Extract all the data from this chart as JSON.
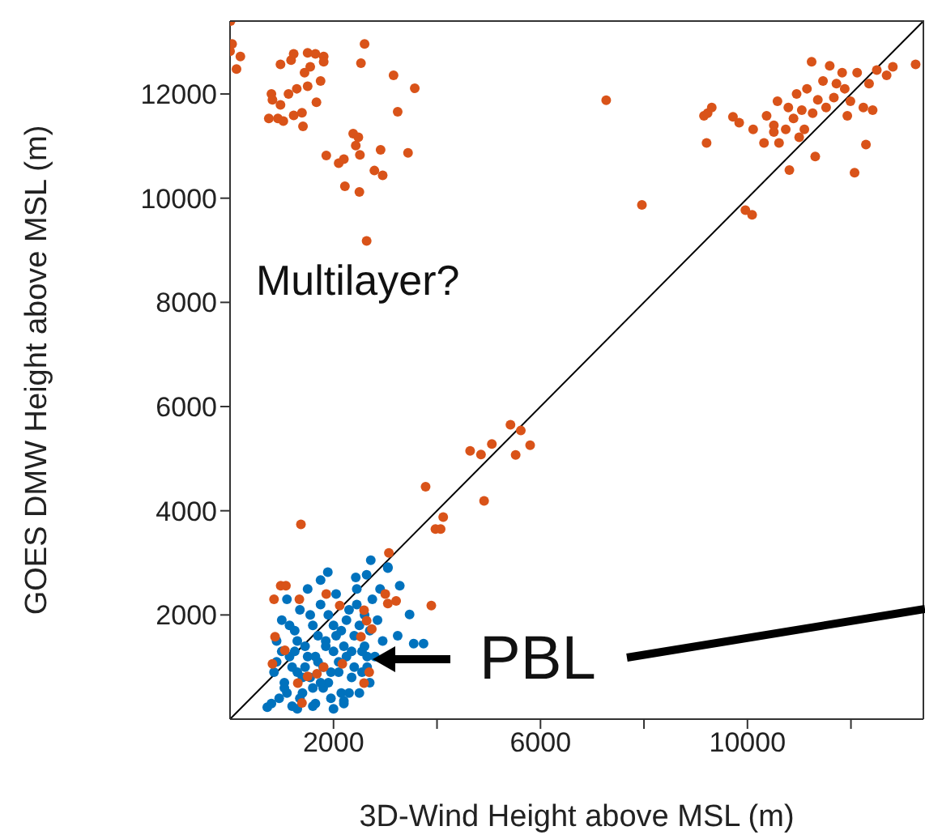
{
  "chart_data": {
    "type": "scatter",
    "xlabel": "3D-Wind Height above MSL (m)",
    "ylabel": "GOES DMW Height above MSL (m)",
    "xlim": [
      0,
      13400
    ],
    "ylim": [
      0,
      13400
    ],
    "xticks": [
      2000,
      {
        "value": 4000,
        "label": null
      },
      6000,
      {
        "value": 8000,
        "label": null
      },
      10000,
      {
        "value": 12000,
        "label": null
      }
    ],
    "yticks": [
      2000,
      4000,
      6000,
      8000,
      10000,
      12000
    ],
    "annotations": [
      "Multilayer?",
      "PBL"
    ],
    "series": [
      {
        "marker": "circle",
        "color": "#0072bd",
        "x": [
          720,
          800,
          850,
          900,
          950,
          1000,
          1050,
          1100,
          1150,
          1200,
          1250,
          1300,
          1350,
          1400,
          1450,
          1500,
          1550,
          1600,
          1650,
          1700,
          1750,
          1800,
          1850,
          1900,
          1950,
          2000,
          2050,
          2100,
          2150,
          2200,
          2250,
          2300,
          2350,
          2400,
          2450,
          2500,
          2550,
          2600,
          2650,
          2700,
          2750,
          2800,
          2850,
          2900,
          2950,
          3050,
          900,
          1000,
          1100,
          1200,
          1300,
          1400,
          1500,
          1600,
          1700,
          1800,
          1900,
          2000,
          2100,
          2200,
          2300,
          2400,
          2500,
          2600,
          2700,
          1050,
          1150,
          1250,
          1350,
          1450,
          1550,
          1650,
          1750,
          1850,
          1950,
          2050,
          2150,
          2250,
          2350,
          2450,
          2550,
          2650,
          1890,
          1750,
          2430,
          2640,
          3050,
          3280,
          2720,
          3470,
          3240,
          3550,
          3740,
          1300,
          1600,
          2000,
          2200
        ],
        "values": [
          230,
          300,
          900,
          1500,
          400,
          1900,
          700,
          2300,
          1200,
          250,
          1700,
          900,
          2100,
          500,
          1400,
          2500,
          800,
          1800,
          300,
          1100,
          2200,
          600,
          1500,
          2000,
          400,
          1300,
          2400,
          900,
          1700,
          350,
          1200,
          2100,
          800,
          1600,
          2500,
          500,
          1300,
          2000,
          1000,
          1700,
          2300,
          1200,
          1900,
          2500,
          1500,
          2900,
          1100,
          1300,
          500,
          1000,
          1500,
          800,
          1200,
          600,
          1600,
          1000,
          700,
          1800,
          1100,
          1400,
          500,
          1000,
          1800,
          1400,
          700,
          600,
          1800,
          1300,
          400,
          1000,
          2000,
          1200,
          700,
          1400,
          900,
          1600,
          500,
          1900,
          1300,
          2200,
          900,
          1200,
          2820,
          2670,
          2720,
          2770,
          2920,
          2560,
          3050,
          2010,
          1600,
          1450,
          1450,
          200,
          250,
          200,
          300
        ]
      },
      {
        "marker": "circle",
        "color": "#d95319",
        "x": [
          10,
          40,
          0,
          200,
          125,
          750,
          800,
          820,
          975,
          975,
          925,
          1030,
          1130,
          1180,
          1230,
          1230,
          1290,
          1390,
          1410,
          1440,
          1500,
          1500,
          1550,
          1650,
          1670,
          1750,
          1810,
          1810,
          1860,
          2100,
          2200,
          2220,
          2380,
          2430,
          2480,
          2510,
          2500,
          2530,
          2600,
          2790,
          2910,
          2950,
          2640,
          3160,
          3240,
          3440,
          3570,
          7270,
          7960,
          9160,
          9230,
          9310,
          9210,
          9720,
          9840,
          9960,
          10090,
          10110,
          10320,
          10370,
          10510,
          10510,
          10580,
          10610,
          10740,
          10790,
          10810,
          10890,
          10950,
          11000,
          11050,
          11100,
          11150,
          11240,
          11260,
          11310,
          11360,
          11460,
          11520,
          11590,
          11670,
          11720,
          11830,
          11880,
          11930,
          11990,
          12070,
          12120,
          12240,
          12290,
          12350,
          12420,
          12500,
          12690,
          12810,
          13250,
          5420,
          5620,
          5800,
          5520,
          5060,
          4850,
          4640,
          4910,
          3780,
          4120,
          3970,
          4070,
          1370,
          3070,
          3890,
          980,
          1080,
          850,
          1340,
          2120,
          2590,
          2640,
          2740,
          3000,
          3210,
          3050,
          870,
          1060,
          820,
          1810,
          1680,
          1500,
          1310,
          2170,
          2690,
          2590,
          1390,
          1860,
          2530
        ],
        "values": [
          13400,
          12960,
          12820,
          12720,
          12480,
          11530,
          12000,
          11890,
          12570,
          11790,
          11530,
          11480,
          12000,
          12650,
          12770,
          11590,
          12100,
          11640,
          11380,
          12410,
          12150,
          12790,
          12520,
          12770,
          11840,
          12250,
          12720,
          12620,
          10820,
          10670,
          10750,
          10230,
          11240,
          11010,
          11170,
          10830,
          10120,
          12590,
          12960,
          10530,
          10930,
          10440,
          9180,
          12360,
          11660,
          10870,
          12110,
          11880,
          9870,
          11580,
          11630,
          11740,
          11060,
          11560,
          11450,
          9770,
          9680,
          11320,
          11060,
          11580,
          11400,
          11270,
          11860,
          11060,
          11320,
          11740,
          10540,
          11530,
          12000,
          11170,
          11690,
          11320,
          12100,
          12620,
          11630,
          10800,
          11890,
          12250,
          11740,
          12540,
          11930,
          12200,
          12410,
          12100,
          11580,
          11860,
          10490,
          12410,
          11740,
          11030,
          12200,
          11690,
          12460,
          12360,
          12520,
          12570,
          5650,
          5540,
          5260,
          5070,
          5280,
          5080,
          5150,
          4190,
          4460,
          3880,
          3650,
          3650,
          3740,
          3190,
          2180,
          2560,
          2560,
          2300,
          2300,
          2180,
          2090,
          1890,
          1730,
          2400,
          2270,
          2220,
          1580,
          1320,
          1060,
          1000,
          870,
          820,
          690,
          1060,
          900,
          690,
          310,
          2400,
          1580
        ]
      },
      {
        "type": "line",
        "marker": "none",
        "color": "#000000",
        "x": [
          0,
          13400
        ],
        "values": [
          0,
          13400
        ]
      }
    ]
  }
}
